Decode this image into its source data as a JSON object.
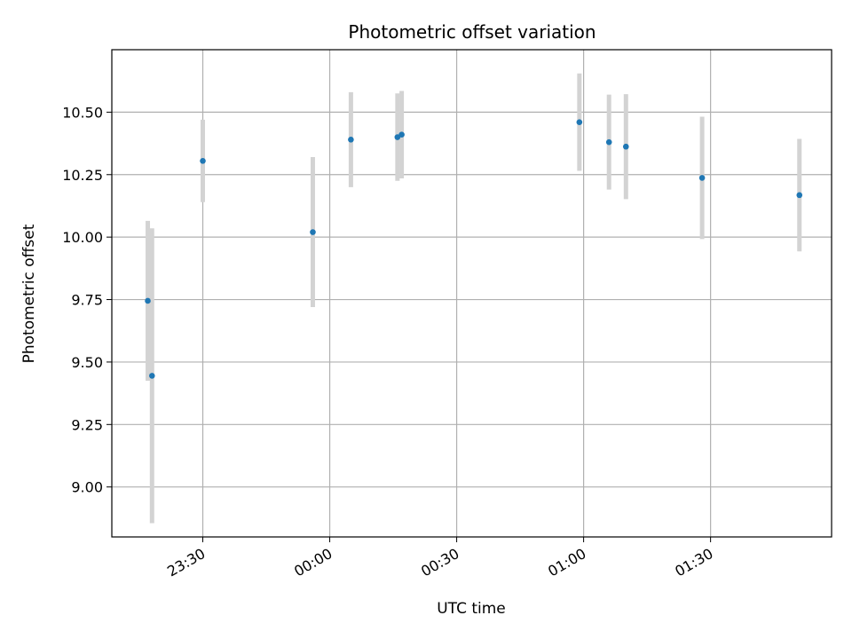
{
  "chart_data": {
    "type": "scatter",
    "title": "Photometric offset variation",
    "xlabel": "UTC time",
    "ylabel": "Photometric offset",
    "grid": true,
    "x_ticks": [
      "23:30",
      "00:00",
      "00:30",
      "01:00",
      "01:30"
    ],
    "x_tick_minutes": [
      -30,
      0,
      30,
      60,
      90
    ],
    "y_ticks": [
      "9.00",
      "9.25",
      "9.50",
      "9.75",
      "10.00",
      "10.25",
      "10.50"
    ],
    "y_tick_values": [
      9.0,
      9.25,
      9.5,
      9.75,
      10.0,
      10.25,
      10.5
    ],
    "xlim": [
      -51.5,
      118.6
    ],
    "ylim": [
      8.8,
      10.75
    ],
    "marker_color": "#1f77b4",
    "errorbar_color": "#d3d3d3",
    "series": [
      {
        "points": [
          {
            "time": "23:17",
            "y": 9.745,
            "err": 0.32
          },
          {
            "time": "23:18",
            "y": 9.445,
            "err": 0.59
          },
          {
            "time": "23:30",
            "y": 10.305,
            "err": 0.165
          },
          {
            "time": "23:56",
            "y": 10.02,
            "err": 0.3
          },
          {
            "time": "00:05",
            "y": 10.39,
            "err": 0.19
          },
          {
            "time": "00:16",
            "y": 10.4,
            "err": 0.175
          },
          {
            "time": "00:17",
            "y": 10.41,
            "err": 0.175
          },
          {
            "time": "00:59",
            "y": 10.46,
            "err": 0.195
          },
          {
            "time": "01:06",
            "y": 10.38,
            "err": 0.19
          },
          {
            "time": "01:10",
            "y": 10.362,
            "err": 0.21
          },
          {
            "time": "01:28",
            "y": 10.237,
            "err": 0.245
          },
          {
            "time": "01:51",
            "y": 10.168,
            "err": 0.225
          }
        ]
      }
    ]
  }
}
